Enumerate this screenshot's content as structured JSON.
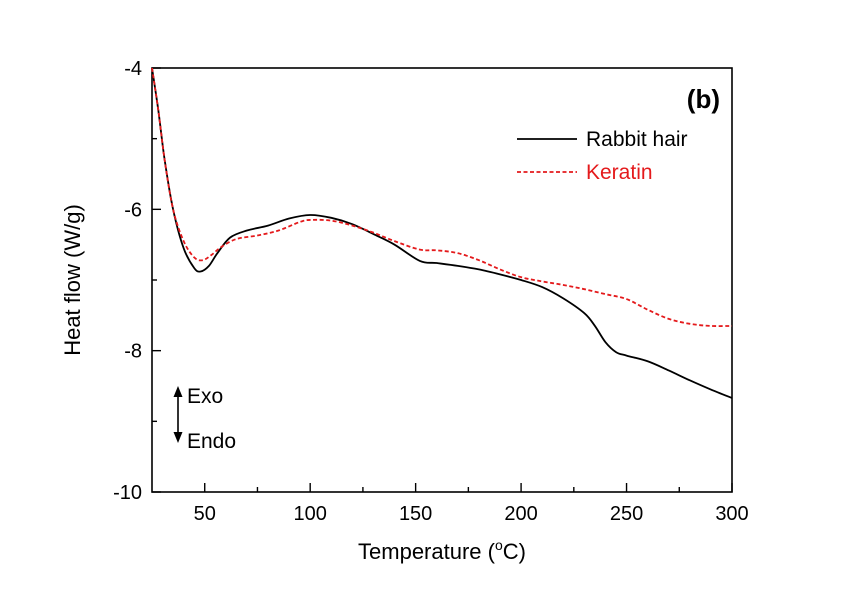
{
  "chart_data": {
    "type": "line",
    "title": "",
    "panel_label": "(b)",
    "xlabel": "Temperature (",
    "xlabel_sup": "o",
    "xlabel_tail": "C)",
    "ylabel": "Heat flow (W/g)",
    "xlim": [
      25,
      300
    ],
    "ylim": [
      -10,
      -4
    ],
    "x_ticks": [
      50,
      100,
      150,
      200,
      250,
      300
    ],
    "y_ticks": [
      -10,
      -8,
      -6,
      -4
    ],
    "x_tick_labels": [
      "50",
      "100",
      "150",
      "200",
      "250",
      "300"
    ],
    "y_tick_labels": [
      "-10",
      "-8",
      "-6",
      "-4"
    ],
    "grid": false,
    "legend_position": "top-right",
    "annotations": {
      "exo": "Exo",
      "endo": "Endo"
    },
    "series": [
      {
        "name": "Rabbit hair",
        "color": "#000000",
        "style": "solid",
        "points": [
          [
            25,
            -4.0
          ],
          [
            28,
            -4.6
          ],
          [
            31,
            -5.3
          ],
          [
            35,
            -6.0
          ],
          [
            40,
            -6.55
          ],
          [
            45,
            -6.83
          ],
          [
            48,
            -6.88
          ],
          [
            52,
            -6.8
          ],
          [
            56,
            -6.62
          ],
          [
            62,
            -6.4
          ],
          [
            70,
            -6.3
          ],
          [
            80,
            -6.23
          ],
          [
            90,
            -6.13
          ],
          [
            100,
            -6.08
          ],
          [
            110,
            -6.12
          ],
          [
            120,
            -6.21
          ],
          [
            130,
            -6.35
          ],
          [
            140,
            -6.5
          ],
          [
            152,
            -6.73
          ],
          [
            160,
            -6.76
          ],
          [
            170,
            -6.8
          ],
          [
            180,
            -6.85
          ],
          [
            190,
            -6.92
          ],
          [
            200,
            -7.0
          ],
          [
            210,
            -7.1
          ],
          [
            220,
            -7.26
          ],
          [
            230,
            -7.47
          ],
          [
            235,
            -7.65
          ],
          [
            240,
            -7.88
          ],
          [
            245,
            -8.02
          ],
          [
            250,
            -8.07
          ],
          [
            260,
            -8.15
          ],
          [
            270,
            -8.28
          ],
          [
            280,
            -8.42
          ],
          [
            290,
            -8.55
          ],
          [
            300,
            -8.67
          ]
        ]
      },
      {
        "name": "Keratin",
        "color": "#e41a1c",
        "style": "dashed",
        "points": [
          [
            25,
            -4.0
          ],
          [
            28,
            -4.6
          ],
          [
            31,
            -5.3
          ],
          [
            35,
            -6.0
          ],
          [
            40,
            -6.45
          ],
          [
            45,
            -6.68
          ],
          [
            49,
            -6.72
          ],
          [
            53,
            -6.65
          ],
          [
            58,
            -6.53
          ],
          [
            65,
            -6.42
          ],
          [
            75,
            -6.37
          ],
          [
            85,
            -6.3
          ],
          [
            95,
            -6.18
          ],
          [
            100,
            -6.15
          ],
          [
            110,
            -6.16
          ],
          [
            120,
            -6.23
          ],
          [
            130,
            -6.33
          ],
          [
            140,
            -6.45
          ],
          [
            152,
            -6.57
          ],
          [
            160,
            -6.58
          ],
          [
            170,
            -6.62
          ],
          [
            180,
            -6.72
          ],
          [
            190,
            -6.85
          ],
          [
            200,
            -6.96
          ],
          [
            210,
            -7.02
          ],
          [
            220,
            -7.07
          ],
          [
            230,
            -7.13
          ],
          [
            240,
            -7.2
          ],
          [
            250,
            -7.27
          ],
          [
            260,
            -7.42
          ],
          [
            270,
            -7.55
          ],
          [
            280,
            -7.62
          ],
          [
            290,
            -7.65
          ],
          [
            300,
            -7.65
          ]
        ]
      }
    ]
  }
}
